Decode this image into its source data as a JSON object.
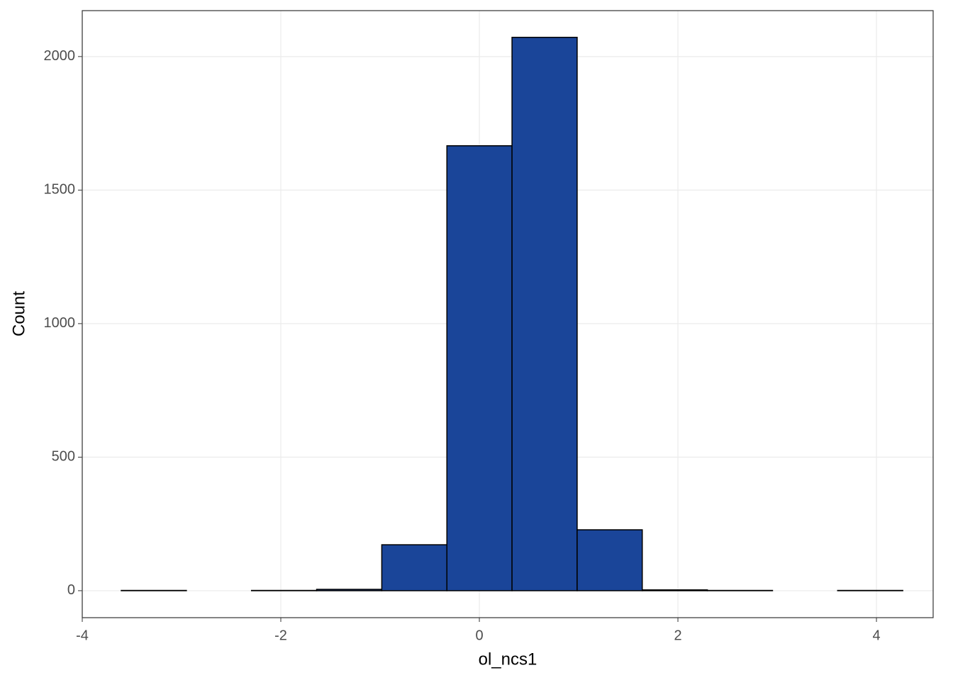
{
  "chart_data": {
    "type": "histogram",
    "x_label": "ol_ncs1",
    "y_label": "Count",
    "bins": [
      -3.607,
      -2.951,
      -2.295,
      -1.639,
      -0.983,
      -0.327,
      0.329,
      0.985,
      1.641,
      2.297,
      2.953,
      3.609,
      4.265
    ],
    "values": [
      1,
      0,
      1,
      5,
      172,
      1666,
      2072,
      228,
      3,
      1,
      0,
      1
    ],
    "color": "#1a4599",
    "edge_color": "#000000",
    "xlim": [
      -4,
      4.571
    ],
    "xticks": [
      -4,
      -2,
      0,
      2,
      4
    ],
    "ylim": [
      -101,
      2172
    ],
    "yticks": [
      0,
      500,
      1000,
      1500,
      2000
    ],
    "grid": true
  }
}
